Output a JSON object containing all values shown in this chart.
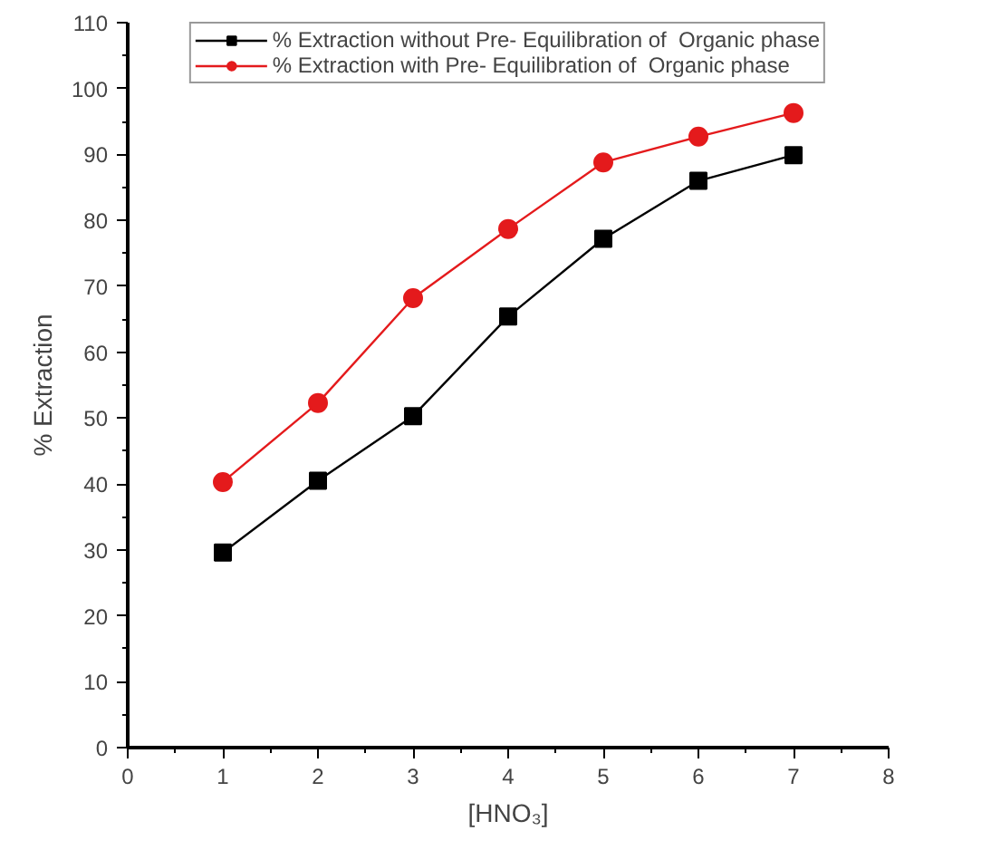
{
  "chart_data": {
    "type": "line",
    "xlabel": "[HNO₃]",
    "ylabel": "% Extraction",
    "x": [
      1,
      2,
      3,
      4,
      5,
      6,
      7
    ],
    "series": [
      {
        "name": "% Extraction without Pre- Equilibration of  Organic phase",
        "color": "#000000",
        "marker": "square",
        "values": [
          29.6,
          40.5,
          50.3,
          65.4,
          77.2,
          86.0,
          89.9
        ]
      },
      {
        "name": "% Extraction with Pre- Equilibration of  Organic phase",
        "color": "#e41a1c",
        "marker": "circle",
        "values": [
          40.3,
          52.3,
          68.2,
          78.7,
          88.8,
          92.7,
          96.3
        ]
      }
    ],
    "xlim": [
      0,
      8
    ],
    "xticks": [
      0,
      1,
      2,
      3,
      4,
      5,
      6,
      7,
      8
    ],
    "ylim": [
      0,
      110
    ],
    "yticks": [
      0,
      10,
      20,
      30,
      40,
      50,
      60,
      70,
      80,
      90,
      100,
      110
    ],
    "grid": false,
    "legend": "top"
  }
}
